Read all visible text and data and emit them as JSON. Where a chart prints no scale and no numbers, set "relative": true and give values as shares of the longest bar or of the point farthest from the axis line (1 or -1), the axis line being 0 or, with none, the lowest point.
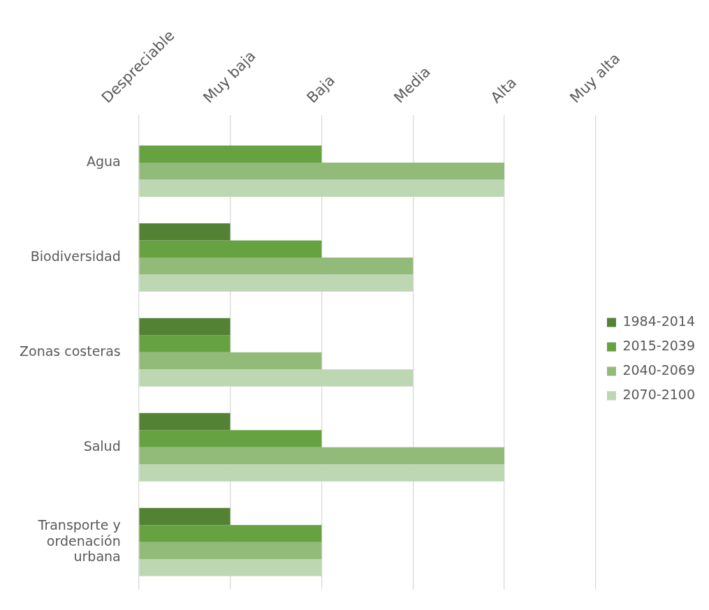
{
  "chart_data": {
    "type": "bar",
    "orientation": "horizontal",
    "relative": true,
    "categories": [
      "Agua",
      "Biodiversidad",
      "Zonas costeras",
      "Salud",
      "Transporte y ordenación urbana"
    ],
    "series": [
      {
        "name": "1984-2014",
        "color": "#548235",
        "values": [
          0,
          0.25,
          0.25,
          0.25,
          0.25
        ]
      },
      {
        "name": "2015-2039",
        "color": "#66a142",
        "values": [
          0.5,
          0.5,
          0.25,
          0.5,
          0.5
        ]
      },
      {
        "name": "2040-2069",
        "color": "#92bb7a",
        "values": [
          1,
          0.75,
          0.5,
          1,
          0.5
        ]
      },
      {
        "name": "2070-2100",
        "color": "#bdd7b2",
        "values": [
          1,
          0.75,
          0.75,
          1,
          0.5
        ]
      }
    ],
    "annotations": [
      "Despreciable",
      "Muy baja",
      "Baja",
      "Media",
      "Alta",
      "Muy alta"
    ],
    "grid": "x",
    "legend": "right"
  }
}
